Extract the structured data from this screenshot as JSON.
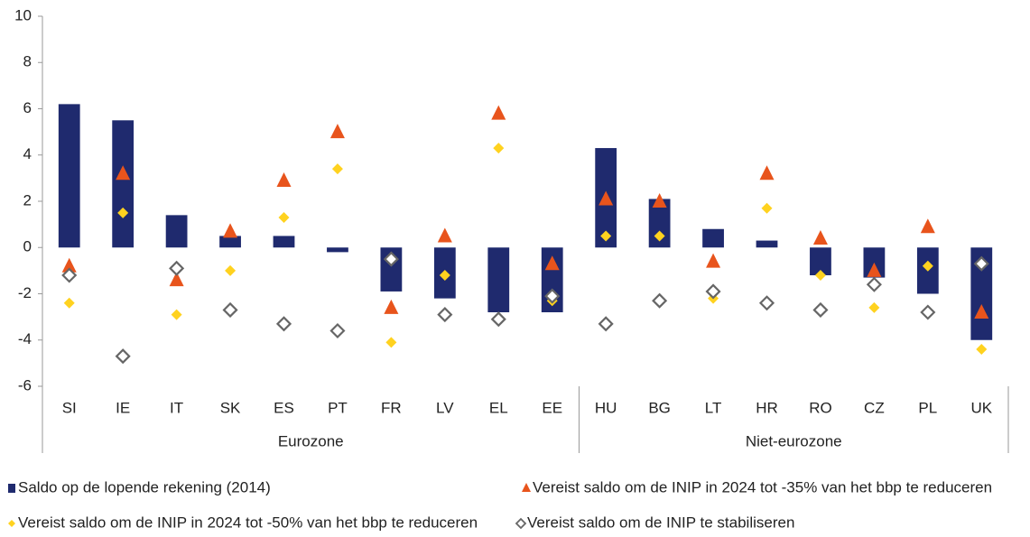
{
  "chart_data": {
    "type": "bar",
    "categories": [
      "SI",
      "IE",
      "IT",
      "SK",
      "ES",
      "PT",
      "FR",
      "LV",
      "EL",
      "EE",
      "HU",
      "BG",
      "LT",
      "HR",
      "RO",
      "CZ",
      "PL",
      "UK"
    ],
    "groups": [
      {
        "label": "Eurozone",
        "count": 10
      },
      {
        "label": "Niet-eurozone",
        "count": 8
      }
    ],
    "series": [
      {
        "name": "Saldo op de lopende rekening (2014)",
        "marker": "bar",
        "color": "#1f2a6e",
        "values": [
          6.2,
          5.5,
          1.4,
          0.5,
          0.5,
          -0.2,
          -1.9,
          -2.2,
          -2.8,
          -2.8,
          4.3,
          2.1,
          0.8,
          0.3,
          -1.2,
          -1.3,
          -2.0,
          -4.0
        ]
      },
      {
        "name": "Vereist saldo om de INIP in 2024 tot -35% van het bbp te reduceren",
        "marker": "triangle",
        "color": "#e8541c",
        "values": [
          -0.8,
          3.2,
          -1.4,
          0.7,
          2.9,
          5.0,
          -2.6,
          0.5,
          5.8,
          -0.7,
          2.1,
          2.0,
          -0.6,
          3.2,
          0.4,
          -1.0,
          0.9,
          -2.8
        ]
      },
      {
        "name": "Vereist saldo om de INIP in 2024 tot -50% van het bbp te reduceren",
        "marker": "diamond",
        "color": "#ffd21f",
        "values": [
          -2.4,
          1.5,
          -2.9,
          -1.0,
          1.3,
          3.4,
          -4.1,
          -1.2,
          4.3,
          -2.3,
          0.5,
          0.5,
          -2.2,
          1.7,
          -1.2,
          -2.6,
          -0.8,
          -4.4
        ]
      },
      {
        "name": "Vereist saldo om de INIP te stabiliseren",
        "marker": "diamond-open",
        "color": "#666666",
        "values": [
          -1.2,
          -4.7,
          -0.9,
          -2.7,
          -3.3,
          -3.6,
          -0.5,
          -2.9,
          -3.1,
          -2.1,
          -3.3,
          -2.3,
          -1.9,
          -2.4,
          -2.7,
          -1.6,
          -2.8,
          -0.7
        ]
      }
    ],
    "ylim": [
      -6,
      10
    ],
    "yticks": [
      -6,
      -4,
      -2,
      0,
      2,
      4,
      6,
      8,
      10
    ],
    "grid": false
  }
}
